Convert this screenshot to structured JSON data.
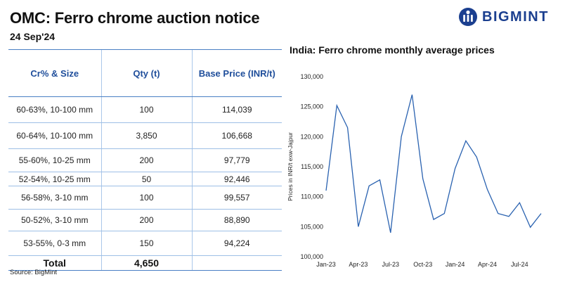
{
  "header": {
    "title": "OMC: Ferro chrome auction notice",
    "date": "24 Sep'24"
  },
  "brand": {
    "name": "BIGMINT",
    "color": "#1b3f8f",
    "icon": "bigmint-logo-icon"
  },
  "table": {
    "headers": [
      "Cr% & Size",
      "Qty (t)",
      "Base Price (INR/t)"
    ],
    "rows": [
      {
        "size": "60-63%,  10-100 mm",
        "qty": "100",
        "price": "114,039"
      },
      {
        "size": "60-64%,  10-100 mm",
        "qty": "3,850",
        "price": "106,668"
      },
      {
        "size": "55-60%,  10-25 mm",
        "qty": "200",
        "price": "97,779"
      },
      {
        "size": "52-54%,  10-25 mm",
        "qty": "50",
        "price": "92,446"
      },
      {
        "size": "56-58%,  3-10 mm",
        "qty": "100",
        "price": "99,557"
      },
      {
        "size": "50-52%,  3-10 mm",
        "qty": "200",
        "price": "88,890"
      },
      {
        "size": "53-55%,  0-3 mm",
        "qty": "150",
        "price": "94,224"
      }
    ],
    "total_label": "Total",
    "total_qty": "4,650",
    "header_color": "#1f4e9b",
    "border_color": "#4a7fc4"
  },
  "source": "Source: BigMint",
  "chart_data": {
    "type": "line",
    "title": "India: Ferro chrome monthly average prices",
    "ylabel": "Prices in INR/t exw-Jajpur",
    "xlabel": "",
    "ylim": [
      100000,
      130000
    ],
    "yticks": [
      100000,
      105000,
      110000,
      115000,
      120000,
      125000,
      130000
    ],
    "ytick_labels": [
      "100,000",
      "105,000",
      "110,000",
      "115,000",
      "120,000",
      "125,000",
      "130,000"
    ],
    "x": [
      "Jan-23",
      "Feb-23",
      "Mar-23",
      "Apr-23",
      "May-23",
      "Jun-23",
      "Jul-23",
      "Aug-23",
      "Sep-23",
      "Oct-23",
      "Nov-23",
      "Dec-23",
      "Jan-24",
      "Feb-24",
      "Mar-24",
      "Apr-24",
      "May-24",
      "Jun-24",
      "Jul-24",
      "Aug-24",
      "Sep-24"
    ],
    "xtick_labels": [
      "Jan-23",
      "Apr-23",
      "Jul-23",
      "Oct-23",
      "Jan-24",
      "Apr-24",
      "Jul-24"
    ],
    "xtick_index": [
      0,
      3,
      6,
      9,
      12,
      15,
      18
    ],
    "series": [
      {
        "values": [
          111000,
          125200,
          121500,
          105000,
          111800,
          112800,
          104000,
          120000,
          127000,
          113000,
          106200,
          107200,
          114700,
          119300,
          116600,
          111200,
          107200,
          106700,
          109000,
          104900,
          107200
        ],
        "color": "#2a62b0"
      }
    ],
    "grid": false,
    "legend": "none"
  }
}
